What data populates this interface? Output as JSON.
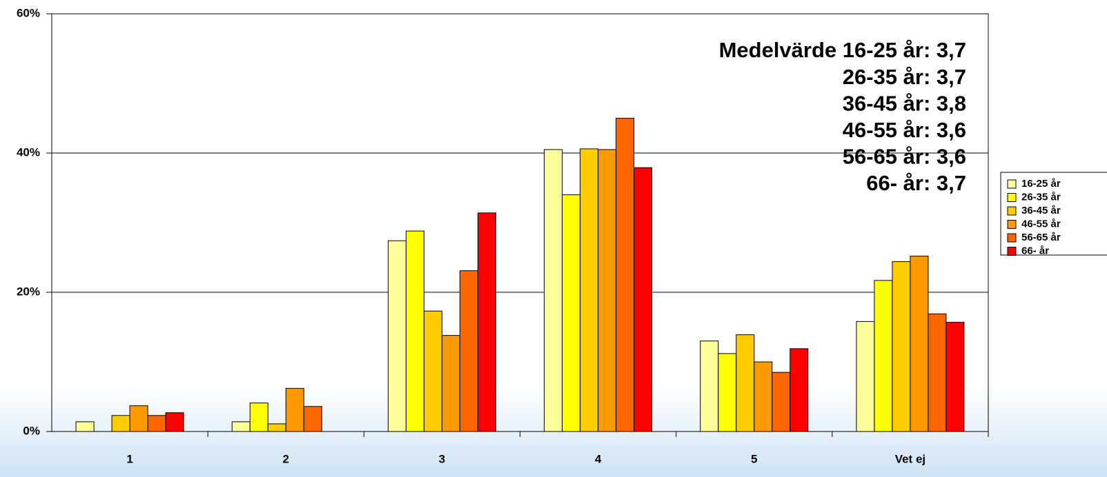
{
  "chart_data": {
    "type": "bar",
    "categories": [
      "1",
      "2",
      "3",
      "4",
      "5",
      "Vet ej"
    ],
    "series": [
      {
        "name": "16-25 år",
        "color": "#ffff99",
        "values": [
          1.4,
          1.4,
          27.4,
          40.5,
          13.0,
          15.8
        ]
      },
      {
        "name": "26-35 år",
        "color": "#ffff00",
        "values": [
          0,
          4.1,
          28.8,
          34.0,
          11.2,
          21.7
        ]
      },
      {
        "name": "36-45 år",
        "color": "#ffcc00",
        "values": [
          2.3,
          1.1,
          17.3,
          40.6,
          13.9,
          24.4
        ]
      },
      {
        "name": "46-55 år",
        "color": "#ff9900",
        "values": [
          3.7,
          6.2,
          13.8,
          40.5,
          10.0,
          25.2
        ]
      },
      {
        "name": "56-65 år",
        "color": "#ff6600",
        "values": [
          2.3,
          3.6,
          23.1,
          45.0,
          8.5,
          16.9
        ]
      },
      {
        "name": "66- år",
        "color": "#ff0000",
        "values": [
          2.7,
          0,
          31.4,
          37.9,
          11.9,
          15.7
        ]
      }
    ],
    "ylim": [
      0,
      60
    ],
    "yticks": [
      {
        "value": 0,
        "label": "0%"
      },
      {
        "value": 20,
        "label": "20%"
      },
      {
        "value": 40,
        "label": "40%"
      },
      {
        "value": 60,
        "label": "60%"
      }
    ],
    "grid": true,
    "legend": "right",
    "annotation": [
      "Medelvärde 16-25 år: 3,7",
      "26-35 år: 3,7",
      "36-45 år: 3,8",
      "46-55 år: 3,6",
      "56-65 år: 3,6",
      "66- år: 3,7"
    ]
  }
}
